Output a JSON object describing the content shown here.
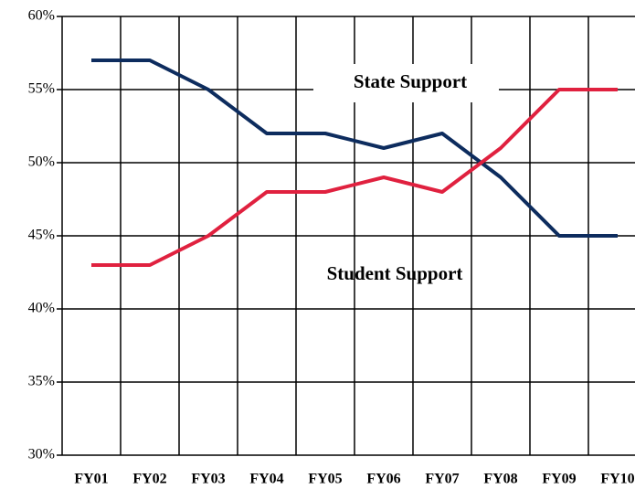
{
  "chart_data": {
    "type": "line",
    "categories": [
      "FY01",
      "FY02",
      "FY03",
      "FY04",
      "FY05",
      "FY06",
      "FY07",
      "FY08",
      "FY09",
      "FY10"
    ],
    "series": [
      {
        "name": "State Support",
        "color": "#0d2c5e",
        "values": [
          57,
          57,
          55,
          52,
          52,
          51,
          52,
          49,
          45,
          45
        ]
      },
      {
        "name": "Student Support",
        "color": "#e0213f",
        "values": [
          43,
          43,
          45,
          48,
          48,
          49,
          48,
          51,
          55,
          55
        ]
      }
    ],
    "ylim": [
      30,
      60
    ],
    "yticks": [
      {
        "value": 30,
        "label": "30%"
      },
      {
        "value": 35,
        "label": "35%"
      },
      {
        "value": 40,
        "label": "40%"
      },
      {
        "value": 45,
        "label": "45%"
      },
      {
        "value": 50,
        "label": "50%"
      },
      {
        "value": 55,
        "label": "55%"
      },
      {
        "value": 60,
        "label": "60%"
      }
    ],
    "grid": true
  }
}
